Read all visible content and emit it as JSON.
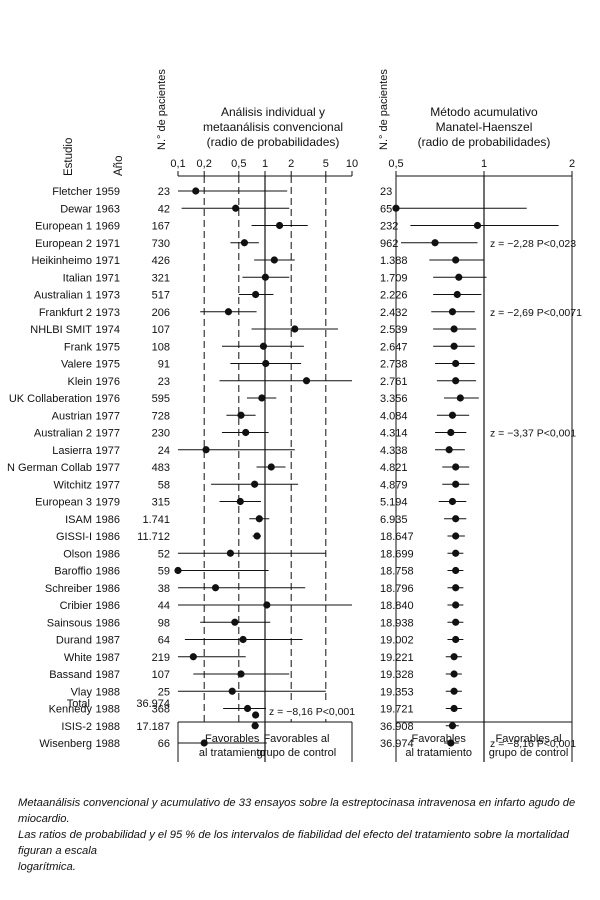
{
  "headers": {
    "study": "Estudio",
    "year": "Año",
    "patients_left": "N.° de pacientes",
    "patients_right": "N.° de pacientes"
  },
  "total_label": "Total",
  "total_patients": "36.974",
  "caption": [
    "Metaanálisis convencional y acumulativo de 33 ensayos sobre la estreptocinasa intravenosa en infarto agudo de miocardio.",
    "Las ratios de probabilidad y el 95 % de los intervalos de fiabilidad del efecto del tratamiento sobre la mortalidad figuran a escala",
    "logarítmica."
  ],
  "chart_data": [
    {
      "type": "forest",
      "title": [
        "Análisis individual y",
        "metaanálisis convencional",
        "(radio de probabilidades)"
      ],
      "scale": "log",
      "xlim": [
        0.1,
        10
      ],
      "ticks": [
        "0,1",
        "0,2",
        "0,5",
        "1",
        "2",
        "5",
        "10"
      ],
      "tick_values": [
        0.1,
        0.2,
        0.5,
        1,
        2,
        5,
        10
      ],
      "dashed_refs": [
        0.2,
        0.5,
        2,
        5
      ],
      "reference": 1,
      "favor_labels": [
        [
          "Favorables",
          "al tratamiento"
        ],
        [
          "Favorables al",
          "grupo de control"
        ]
      ],
      "pooled": {
        "or": 0.78,
        "lo": 0.72,
        "hi": 0.84
      },
      "annotation": "z = −8,16 P<0,001",
      "studies": [
        {
          "name": "Fletcher",
          "year": "1959",
          "n": "23",
          "or": 0.16,
          "lo": 0.03,
          "hi": 1.8
        },
        {
          "name": "Dewar",
          "year": "1963",
          "n": "42",
          "or": 0.46,
          "lo": 0.11,
          "hi": 1.9
        },
        {
          "name": "European 1",
          "year": "1969",
          "n": "167",
          "or": 1.47,
          "lo": 0.7,
          "hi": 3.1
        },
        {
          "name": "European 2",
          "year": "1971",
          "n": "730",
          "or": 0.58,
          "lo": 0.4,
          "hi": 0.85
        },
        {
          "name": "Heikinheimo",
          "year": "1971",
          "n": "426",
          "or": 1.28,
          "lo": 0.75,
          "hi": 2.2
        },
        {
          "name": "Italian",
          "year": "1971",
          "n": "321",
          "or": 1.01,
          "lo": 0.55,
          "hi": 1.9
        },
        {
          "name": "Australian 1",
          "year": "1973",
          "n": "517",
          "or": 0.78,
          "lo": 0.5,
          "hi": 1.25
        },
        {
          "name": "Frankfurt 2",
          "year": "1973",
          "n": "206",
          "or": 0.38,
          "lo": 0.18,
          "hi": 0.8
        },
        {
          "name": "NHLBI SMIT",
          "year": "1974",
          "n": "107",
          "or": 2.2,
          "lo": 0.7,
          "hi": 6.9
        },
        {
          "name": "Frank",
          "year": "1975",
          "n": "108",
          "or": 0.96,
          "lo": 0.32,
          "hi": 2.8
        },
        {
          "name": "Valere",
          "year": "1975",
          "n": "91",
          "or": 1.02,
          "lo": 0.4,
          "hi": 2.6
        },
        {
          "name": "Klein",
          "year": "1976",
          "n": "23",
          "or": 3.0,
          "lo": 0.3,
          "hi": 10
        },
        {
          "name": "UK Collaberation",
          "year": "1976",
          "n": "595",
          "or": 0.92,
          "lo": 0.62,
          "hi": 1.35
        },
        {
          "name": "Austrian",
          "year": "1977",
          "n": "728",
          "or": 0.53,
          "lo": 0.36,
          "hi": 0.78
        },
        {
          "name": "Australian 2",
          "year": "1977",
          "n": "230",
          "or": 0.6,
          "lo": 0.32,
          "hi": 1.1
        },
        {
          "name": "Lasierra",
          "year": "1977",
          "n": "24",
          "or": 0.21,
          "lo": 0.02,
          "hi": 2.2
        },
        {
          "name": "N German Collab",
          "year": "1977",
          "n": "483",
          "or": 1.18,
          "lo": 0.8,
          "hi": 1.72
        },
        {
          "name": "Witchitz",
          "year": "1977",
          "n": "58",
          "or": 0.76,
          "lo": 0.24,
          "hi": 2.4
        },
        {
          "name": "European 3",
          "year": "1979",
          "n": "315",
          "or": 0.52,
          "lo": 0.3,
          "hi": 0.9
        },
        {
          "name": "ISAM",
          "year": "1986",
          "n": "1.741",
          "or": 0.86,
          "lo": 0.66,
          "hi": 1.12
        },
        {
          "name": "GISSI-I",
          "year": "1986",
          "n": "11.712",
          "or": 0.81,
          "lo": 0.72,
          "hi": 0.9
        },
        {
          "name": "Olson",
          "year": "1986",
          "n": "52",
          "or": 0.4,
          "lo": 0.05,
          "hi": 5
        },
        {
          "name": "Baroffio",
          "year": "1986",
          "n": "59",
          "or": 0.1,
          "lo": 0.01,
          "hi": 1.1
        },
        {
          "name": "Schreiber",
          "year": "1986",
          "n": "38",
          "or": 0.27,
          "lo": 0.05,
          "hi": 2.9
        },
        {
          "name": "Cribier",
          "year": "1986",
          "n": "44",
          "or": 1.05,
          "lo": 0.09,
          "hi": 10
        },
        {
          "name": "Sainsous",
          "year": "1986",
          "n": "98",
          "or": 0.45,
          "lo": 0.18,
          "hi": 1.15
        },
        {
          "name": "Durand",
          "year": "1987",
          "n": "64",
          "or": 0.56,
          "lo": 0.12,
          "hi": 2.7
        },
        {
          "name": "White",
          "year": "1987",
          "n": "219",
          "or": 0.15,
          "lo": 0.04,
          "hi": 0.6
        },
        {
          "name": "Bassand",
          "year": "1987",
          "n": "107",
          "or": 0.53,
          "lo": 0.15,
          "hi": 1.9
        },
        {
          "name": "Vlay",
          "year": "1988",
          "n": "25",
          "or": 0.42,
          "lo": 0.04,
          "hi": 5
        },
        {
          "name": "Kennedy",
          "year": "1988",
          "n": "368",
          "or": 0.63,
          "lo": 0.33,
          "hi": 1.2
        },
        {
          "name": "ISIS-2",
          "year": "1988",
          "n": "17.187",
          "or": 0.77,
          "lo": 0.7,
          "hi": 0.85
        },
        {
          "name": "Wisenberg",
          "year": "1988",
          "n": "66",
          "or": 0.2,
          "lo": 0.04,
          "hi": 1.05
        }
      ]
    },
    {
      "type": "forest",
      "title": [
        "Método acumulativo",
        "Manatel-Haenszel",
        "(radio de probabilidades)"
      ],
      "scale": "log",
      "xlim": [
        0.5,
        2
      ],
      "ticks": [
        "0,5",
        "1",
        "2"
      ],
      "tick_values": [
        0.5,
        1,
        2
      ],
      "reference": 1,
      "favor_labels": [
        [
          "Favorables",
          "al tratamiento"
        ],
        [
          "Favorables al",
          "grupo de control"
        ]
      ],
      "annotations": [
        {
          "row": 3,
          "text": "z = −2,28 P<0,023"
        },
        {
          "row": 7,
          "text": "z = −2,69 P<0,0071"
        },
        {
          "row": 14,
          "text": "z = −3,37 P<0,001"
        },
        {
          "row": 32,
          "text": "z = −8,16 P<0,001"
        }
      ],
      "cumulative": [
        {
          "n": "23",
          "or": null,
          "lo": null,
          "hi": null
        },
        {
          "n": "65",
          "or": 0.5,
          "lo": 0.3,
          "hi": 1.4
        },
        {
          "n": "232",
          "or": 0.95,
          "lo": 0.56,
          "hi": 1.8
        },
        {
          "n": "962",
          "or": 0.68,
          "lo": 0.52,
          "hi": 0.95
        },
        {
          "n": "1.388",
          "or": 0.8,
          "lo": 0.65,
          "hi": 1.0
        },
        {
          "n": "1.709",
          "or": 0.82,
          "lo": 0.67,
          "hi": 1.02
        },
        {
          "n": "2.226",
          "or": 0.81,
          "lo": 0.67,
          "hi": 0.98
        },
        {
          "n": "2.432",
          "or": 0.78,
          "lo": 0.66,
          "hi": 0.93
        },
        {
          "n": "2.539",
          "or": 0.79,
          "lo": 0.67,
          "hi": 0.94
        },
        {
          "n": "2.647",
          "or": 0.79,
          "lo": 0.67,
          "hi": 0.93
        },
        {
          "n": "2.738",
          "or": 0.8,
          "lo": 0.68,
          "hi": 0.93
        },
        {
          "n": "2.761",
          "or": 0.8,
          "lo": 0.69,
          "hi": 0.94
        },
        {
          "n": "3.356",
          "or": 0.83,
          "lo": 0.73,
          "hi": 0.96
        },
        {
          "n": "4.084",
          "or": 0.78,
          "lo": 0.69,
          "hi": 0.89
        },
        {
          "n": "4.314",
          "or": 0.77,
          "lo": 0.68,
          "hi": 0.87
        },
        {
          "n": "4.338",
          "or": 0.76,
          "lo": 0.68,
          "hi": 0.86
        },
        {
          "n": "4.821",
          "or": 0.8,
          "lo": 0.72,
          "hi": 0.89
        },
        {
          "n": "4.879",
          "or": 0.8,
          "lo": 0.72,
          "hi": 0.89
        },
        {
          "n": "5.194",
          "or": 0.78,
          "lo": 0.7,
          "hi": 0.87
        },
        {
          "n": "6.935",
          "or": 0.8,
          "lo": 0.73,
          "hi": 0.87
        },
        {
          "n": "18.647",
          "or": 0.8,
          "lo": 0.75,
          "hi": 0.86
        },
        {
          "n": "18.699",
          "or": 0.8,
          "lo": 0.75,
          "hi": 0.85
        },
        {
          "n": "18.758",
          "or": 0.8,
          "lo": 0.75,
          "hi": 0.85
        },
        {
          "n": "18.796",
          "or": 0.8,
          "lo": 0.75,
          "hi": 0.85
        },
        {
          "n": "18.840",
          "or": 0.8,
          "lo": 0.75,
          "hi": 0.85
        },
        {
          "n": "18.938",
          "or": 0.8,
          "lo": 0.75,
          "hi": 0.85
        },
        {
          "n": "19.002",
          "or": 0.8,
          "lo": 0.75,
          "hi": 0.85
        },
        {
          "n": "19.221",
          "or": 0.79,
          "lo": 0.74,
          "hi": 0.84
        },
        {
          "n": "19.328",
          "or": 0.79,
          "lo": 0.74,
          "hi": 0.84
        },
        {
          "n": "19.353",
          "or": 0.79,
          "lo": 0.74,
          "hi": 0.84
        },
        {
          "n": "19.721",
          "or": 0.79,
          "lo": 0.74,
          "hi": 0.84
        },
        {
          "n": "36.908",
          "or": 0.78,
          "lo": 0.74,
          "hi": 0.82
        },
        {
          "n": "36.974",
          "or": 0.77,
          "lo": 0.73,
          "hi": 0.82
        }
      ]
    }
  ]
}
